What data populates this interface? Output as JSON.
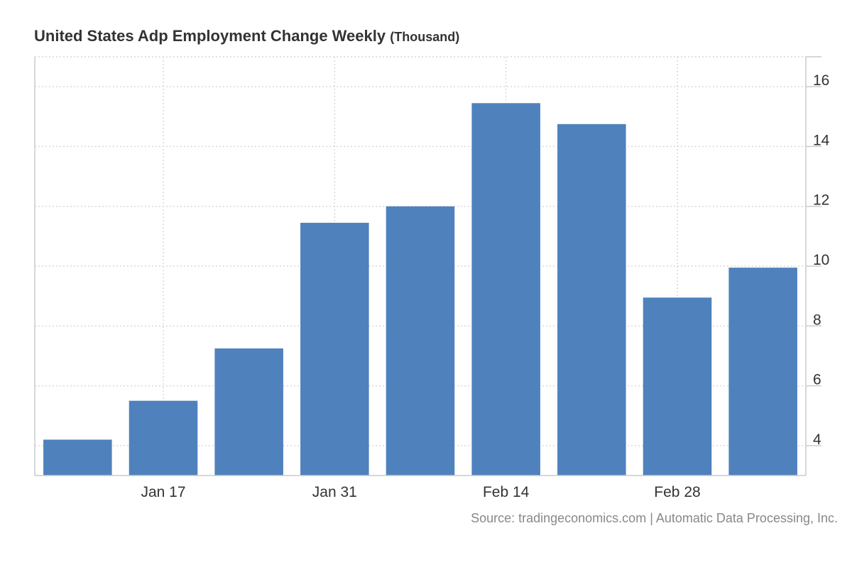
{
  "header": {
    "title": "United States Adp Employment Change Weekly",
    "unit": "(Thousand)"
  },
  "source": "Source: tradingeconomics.com | Automatic Data Processing, Inc.",
  "chart_data": {
    "type": "bar",
    "title": "United States Adp Employment Change Weekly",
    "subtitle": "(Thousand)",
    "xlabel": "",
    "ylabel": "",
    "categories": [
      "",
      "Jan 17",
      "",
      "Jan 31",
      "",
      "Feb 14",
      "",
      "Feb 28",
      ""
    ],
    "values": [
      4.2,
      5.5,
      7.25,
      11.45,
      12.0,
      15.45,
      14.75,
      8.95,
      9.95
    ],
    "x_tick_labels": [
      "Jan 17",
      "Jan 31",
      "Feb 14",
      "Feb 28"
    ],
    "y_ticks": [
      4,
      6,
      8,
      10,
      12,
      14,
      16
    ],
    "ylim": [
      3,
      17
    ],
    "y_axis_side": "right",
    "grid": true,
    "colors": {
      "bar": "#4f81bd",
      "grid": "#d9d9d9",
      "axis": "#cccccc"
    }
  }
}
